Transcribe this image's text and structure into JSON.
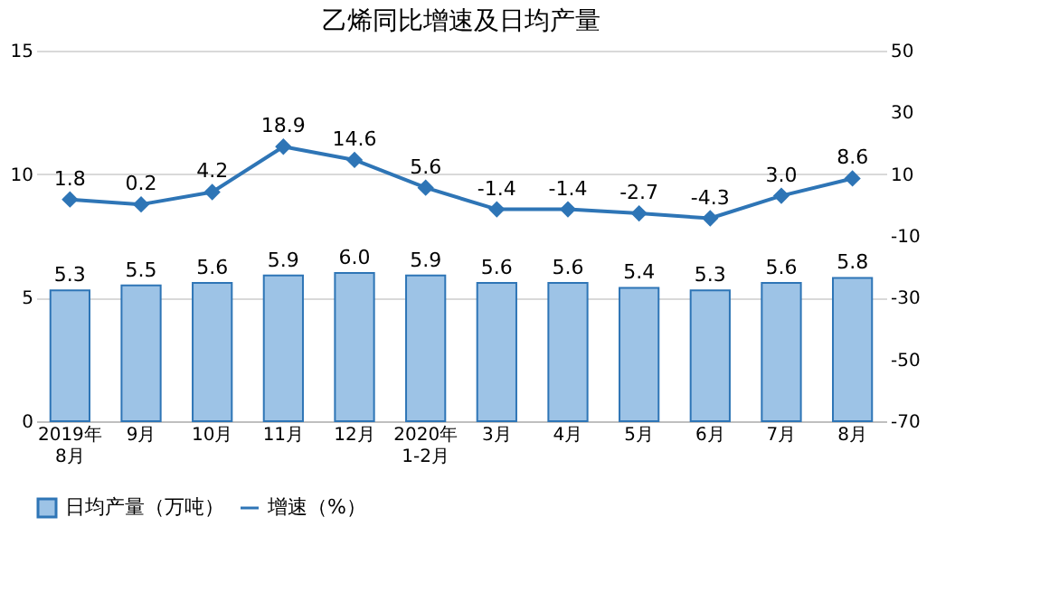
{
  "chart_data": {
    "type": "bar",
    "title": "乙烯同比增速及日均产量",
    "categories": [
      "2019年\n8月",
      "9月",
      "10月",
      "11月",
      "12月",
      "2020年\n1-2月",
      "3月",
      "4月",
      "5月",
      "6月",
      "7月",
      "8月"
    ],
    "series": [
      {
        "name": "日均产量（万吨）",
        "color": "#9dc3e6",
        "axis": "y",
        "values": [
          5.3,
          5.5,
          5.6,
          5.9,
          6.0,
          5.9,
          5.6,
          5.6,
          5.4,
          5.3,
          5.6,
          5.8
        ],
        "value_labels": [
          "5.3",
          "5.5",
          "5.6",
          "5.9",
          "6.0",
          "5.9",
          "5.6",
          "5.6",
          "5.4",
          "5.3",
          "5.6",
          "5.8"
        ]
      },
      {
        "name": "增速（%）",
        "type": "line",
        "color": "#2e75b6",
        "axis": "y2",
        "marker": "diamond",
        "values": [
          1.8,
          0.2,
          4.2,
          18.9,
          14.6,
          5.6,
          -1.4,
          -1.4,
          -2.7,
          -4.3,
          3.0,
          8.6
        ],
        "value_labels": [
          "1.8",
          "0.2",
          "4.2",
          "18.9",
          "14.6",
          "5.6",
          "-1.4",
          "-1.4",
          "-2.7",
          "-4.3",
          "3.0",
          "8.6"
        ]
      }
    ],
    "ylim": [
      0,
      15
    ],
    "yticks": [
      0,
      5,
      10,
      15
    ],
    "y2lim": [
      -70,
      50
    ],
    "y2ticks": [
      -70,
      -50,
      -30,
      -10,
      10,
      30,
      50
    ],
    "grid": "y",
    "legend": "bottom"
  }
}
